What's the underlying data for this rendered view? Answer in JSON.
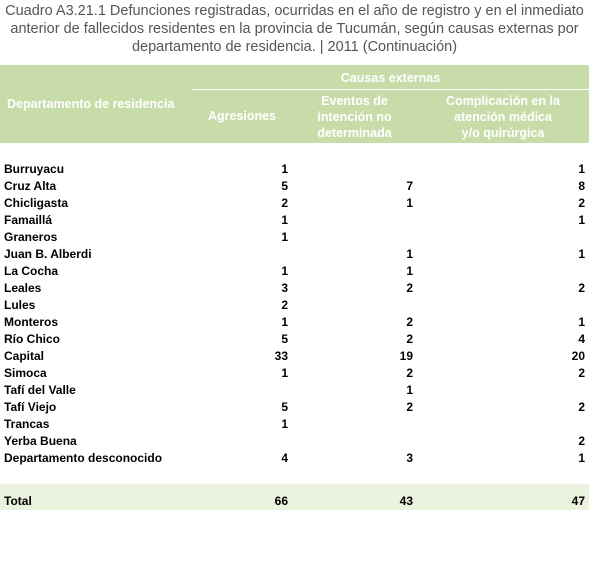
{
  "caption": {
    "line1": "Cuadro A3.21.1 Defunciones registradas, ocurridas en el año de registro y en el inmediato",
    "line2": "anterior de fallecidos residentes en la provincia de Tucumán, según  causas externas por",
    "line3": "departamento de residencia. | 2011 (Continuación)"
  },
  "header": {
    "departamento": "Departamento de residencia",
    "causas": "Causas externas",
    "agresiones": "Agresiones",
    "eventos_l1": "Eventos de",
    "eventos_l2": "intención no",
    "eventos_l3": "determinada",
    "complicacion_l1": "Complicación en la",
    "complicacion_l2": "atención médica",
    "complicacion_l3": "y/o quirúrgica"
  },
  "rows": [
    {
      "name": "Burruyacu",
      "agresiones": "1",
      "eventos": "",
      "complicacion": "1"
    },
    {
      "name": "Cruz Alta",
      "agresiones": "5",
      "eventos": "7",
      "complicacion": "8"
    },
    {
      "name": "Chicligasta",
      "agresiones": "2",
      "eventos": "1",
      "complicacion": "2"
    },
    {
      "name": "Famaillá",
      "agresiones": "1",
      "eventos": "",
      "complicacion": "1"
    },
    {
      "name": "Graneros",
      "agresiones": "1",
      "eventos": "",
      "complicacion": ""
    },
    {
      "name": "Juan B. Alberdi",
      "agresiones": "",
      "eventos": "1",
      "complicacion": "1"
    },
    {
      "name": "La Cocha",
      "agresiones": "1",
      "eventos": "1",
      "complicacion": ""
    },
    {
      "name": "Leales",
      "agresiones": "3",
      "eventos": "2",
      "complicacion": "2"
    },
    {
      "name": "Lules",
      "agresiones": "2",
      "eventos": "",
      "complicacion": ""
    },
    {
      "name": "Monteros",
      "agresiones": "1",
      "eventos": "2",
      "complicacion": "1"
    },
    {
      "name": "Río Chico",
      "agresiones": "5",
      "eventos": "2",
      "complicacion": "4"
    },
    {
      "name": "Capital",
      "agresiones": "33",
      "eventos": "19",
      "complicacion": "20"
    },
    {
      "name": "Simoca",
      "agresiones": "1",
      "eventos": "2",
      "complicacion": "2"
    },
    {
      "name": "Tafí del Valle",
      "agresiones": "",
      "eventos": "1",
      "complicacion": ""
    },
    {
      "name": "Tafí Viejo",
      "agresiones": "5",
      "eventos": "2",
      "complicacion": "2"
    },
    {
      "name": "Trancas",
      "agresiones": "1",
      "eventos": "",
      "complicacion": ""
    },
    {
      "name": "Yerba Buena",
      "agresiones": "",
      "eventos": "",
      "complicacion": "2"
    },
    {
      "name": "Departamento desconocido",
      "agresiones": "4",
      "eventos": "3",
      "complicacion": "1"
    }
  ],
  "total": {
    "name": "Total",
    "agresiones": "66",
    "eventos": "43",
    "complicacion": "47"
  }
}
